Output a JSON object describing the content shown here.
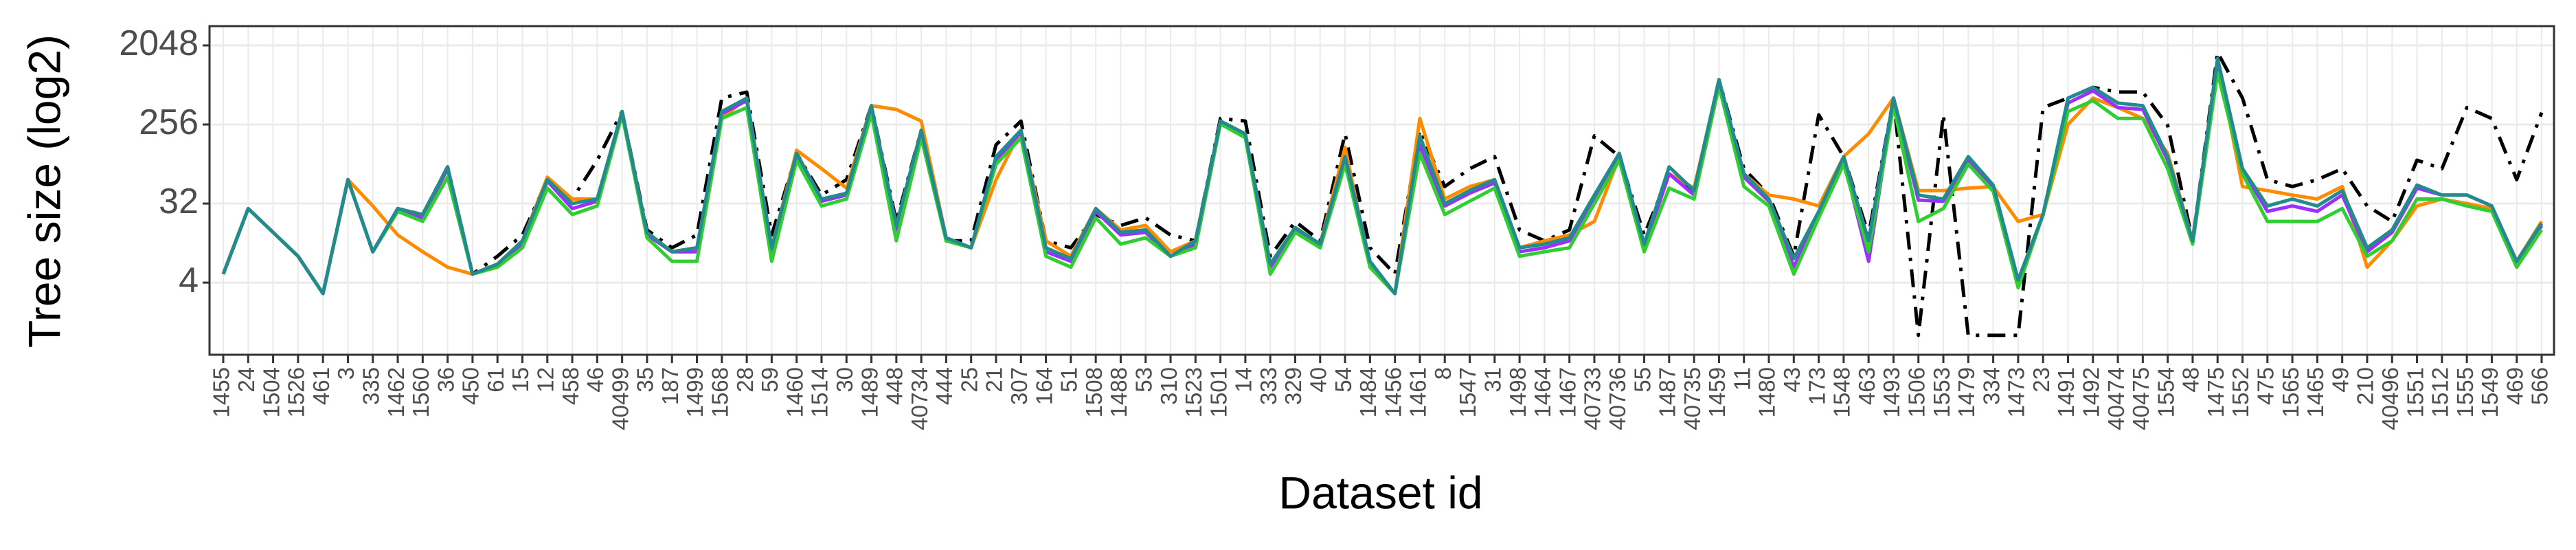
{
  "chart_data": {
    "type": "line",
    "x_label": "Dataset id",
    "y_label": "Tree size (log2)",
    "ylog": true,
    "grid": true,
    "ylim": [
      0.6,
      3400
    ],
    "yticks": [
      4,
      32,
      256,
      2048
    ],
    "categories": [
      "1455",
      "24",
      "1504",
      "1526",
      "461",
      "3",
      "335",
      "1462",
      "1560",
      "36",
      "450",
      "61",
      "15",
      "12",
      "458",
      "46",
      "40499",
      "35",
      "187",
      "1499",
      "1568",
      "28",
      "59",
      "1460",
      "1514",
      "30",
      "1489",
      "448",
      "40734",
      "444",
      "25",
      "21",
      "307",
      "164",
      "51",
      "1508",
      "1488",
      "53",
      "310",
      "1523",
      "1501",
      "14",
      "333",
      "329",
      "40",
      "54",
      "1484",
      "1456",
      "1461",
      "8",
      "1547",
      "31",
      "1498",
      "1464",
      "1467",
      "40733",
      "40736",
      "55",
      "1487",
      "40735",
      "1459",
      "11",
      "1480",
      "43",
      "173",
      "1548",
      "463",
      "1493",
      "1506",
      "1553",
      "1479",
      "334",
      "1473",
      "23",
      "1491",
      "1492",
      "40474",
      "40475",
      "1554",
      "48",
      "1475",
      "1552",
      "475",
      "1565",
      "1465",
      "49",
      "210",
      "40496",
      "1551",
      "1512",
      "1555",
      "1549",
      "469",
      "566"
    ],
    "series": [
      {
        "color": "#000000",
        "dash": true,
        "values": [
          5,
          28,
          15,
          8,
          3,
          60,
          9,
          28,
          24,
          84,
          5,
          8,
          14,
          60,
          36,
          100,
          360,
          16,
          10,
          14,
          512,
          600,
          14,
          120,
          40,
          60,
          420,
          20,
          220,
          12,
          12,
          150,
          280,
          12,
          10,
          24,
          18,
          22,
          14,
          12,
          300,
          280,
          8,
          20,
          12,
          200,
          10,
          5,
          220,
          50,
          80,
          110,
          16,
          12,
          16,
          190,
          110,
          14,
          70,
          45,
          830,
          80,
          40,
          8,
          330,
          110,
          14,
          512,
          1,
          330,
          1,
          1,
          1,
          400,
          512,
          680,
          600,
          600,
          250,
          12,
          1700,
          512,
          60,
          50,
          60,
          80,
          30,
          20,
          100,
          80,
          400,
          300,
          60,
          350
        ]
      },
      {
        "color": "#ff8c00",
        "values": [
          5,
          28,
          15,
          8,
          3,
          60,
          30,
          14,
          9,
          6,
          5,
          6.5,
          12,
          64,
          36,
          36,
          360,
          15,
          9,
          10,
          300,
          512,
          10,
          130,
          80,
          48,
          420,
          380,
          280,
          13,
          10,
          60,
          220,
          12,
          8,
          28,
          16,
          18,
          9,
          12,
          280,
          200,
          6.5,
          17,
          11,
          140,
          6,
          3,
          300,
          36,
          50,
          60,
          10,
          12,
          14,
          20,
          110,
          10,
          70,
          48,
          800,
          70,
          40,
          36,
          30,
          110,
          200,
          512,
          45,
          45,
          48,
          50,
          20,
          24,
          256,
          512,
          400,
          300,
          120,
          12,
          1400,
          50,
          45,
          40,
          36,
          50,
          6,
          12,
          30,
          36,
          32,
          28,
          7,
          20
        ]
      },
      {
        "color": "#9b30ff",
        "values": [
          5,
          28,
          15,
          8,
          3,
          60,
          9,
          28,
          22,
          80,
          5,
          6.5,
          11,
          58,
          28,
          34,
          350,
          14,
          9,
          9,
          340,
          480,
          9,
          115,
          34,
          40,
          400,
          16,
          210,
          13,
          10,
          100,
          210,
          9,
          7,
          26,
          14,
          15,
          8,
          11,
          270,
          190,
          6,
          16,
          10,
          100,
          6.5,
          3,
          150,
          30,
          42,
          55,
          9,
          10,
          12,
          38,
          110,
          10,
          70,
          40,
          800,
          64,
          34,
          6,
          24,
          100,
          7,
          500,
          35,
          34,
          100,
          50,
          4,
          24,
          450,
          620,
          400,
          380,
          100,
          12,
          1300,
          78,
          26,
          30,
          26,
          40,
          9,
          15,
          48,
          40,
          40,
          30,
          6,
          18
        ]
      },
      {
        "color": "#32cd32",
        "values": [
          5,
          28,
          15,
          8,
          3,
          60,
          9,
          26,
          20,
          64,
          5,
          6,
          10,
          48,
          24,
          30,
          330,
          13,
          7,
          7,
          300,
          400,
          7,
          100,
          30,
          36,
          340,
          12,
          180,
          12,
          10,
          90,
          180,
          8,
          6,
          22,
          11,
          13,
          8,
          10,
          260,
          180,
          5,
          15,
          10,
          90,
          6,
          3,
          120,
          24,
          34,
          48,
          8,
          9,
          10,
          32,
          100,
          9,
          48,
          36,
          700,
          50,
          30,
          5,
          22,
          90,
          9,
          420,
          20,
          28,
          90,
          44,
          3.5,
          24,
          360,
          480,
          300,
          300,
          80,
          11,
          1000,
          70,
          20,
          20,
          20,
          28,
          8,
          12,
          36,
          36,
          30,
          26,
          6,
          16
        ]
      },
      {
        "color": "#238b8e",
        "values": [
          5,
          28,
          15,
          8,
          3,
          60,
          9,
          28,
          24,
          84,
          5,
          6.5,
          12,
          60,
          32,
          36,
          360,
          15,
          9,
          10,
          360,
          512,
          10,
          120,
          36,
          42,
          420,
          18,
          220,
          13,
          10,
          110,
          220,
          10,
          7.5,
          28,
          15,
          16,
          8,
          12,
          280,
          200,
          6.5,
          17,
          11,
          110,
          7,
          3,
          190,
          32,
          45,
          60,
          10,
          11,
          13,
          40,
          120,
          11,
          84,
          45,
          830,
          70,
          36,
          7.5,
          26,
          110,
          12,
          512,
          40,
          36,
          110,
          52,
          4.3,
          24,
          512,
          680,
          450,
          420,
          110,
          12,
          1450,
          80,
          30,
          36,
          30,
          45,
          10,
          16,
          52,
          40,
          40,
          30,
          7,
          19
        ]
      }
    ]
  }
}
